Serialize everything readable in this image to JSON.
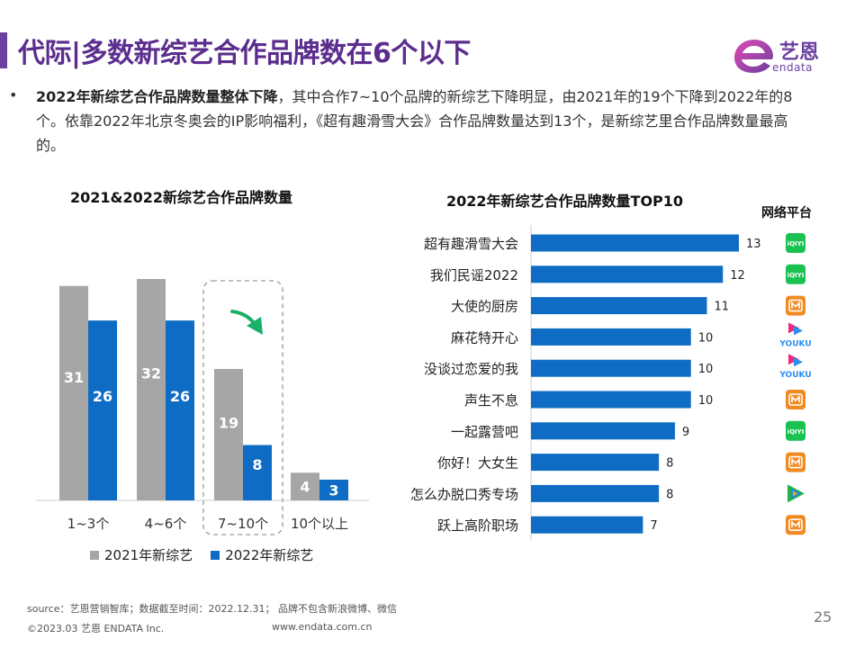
{
  "header": {
    "title": "代际|多数新综艺合作品牌数在6个以下",
    "logo_cn": "艺恩",
    "logo_en": "endata"
  },
  "summary": {
    "bullet": "•",
    "bold": "2022年新综艺合作品牌数量整体下降",
    "rest": "，其中合作7~10个品牌的新综艺下降明显，由2021年的19个下降到2022年的8个。依靠2022年北京冬奥会的IP影响福利，《超有趣滑雪大会》合作品牌数量达到13个，是新综艺里合作品牌数量最高的。"
  },
  "chart_data": [
    {
      "type": "bar",
      "title": "2021&2022新综艺合作品牌数量",
      "categories": [
        "1~3个",
        "4~6个",
        "7~10个",
        "10个以上"
      ],
      "series": [
        {
          "name": "2021年新综艺",
          "values": [
            31,
            32,
            19,
            4
          ],
          "color": "#a6a6a6"
        },
        {
          "name": "2022年新综艺",
          "values": [
            26,
            26,
            8,
            3
          ],
          "color": "#0e6cc4"
        }
      ],
      "ylim": [
        0,
        35
      ],
      "highlight_category": "7~10个",
      "annotation": "down-arrow"
    },
    {
      "type": "bar",
      "orientation": "horizontal",
      "title": "2022年新综艺合作品牌数量TOP10",
      "categories": [
        "超有趣滑雪大会",
        "我们民谣2022",
        "大使的厨房",
        "麻花特开心",
        "没谈过恋爱的我",
        "声生不息",
        "一起露营吧",
        "你好！大女生",
        "怎么办脱口秀专场",
        "跃上高阶职场"
      ],
      "values": [
        13,
        12,
        11,
        10,
        10,
        10,
        9,
        8,
        8,
        7
      ],
      "platforms": [
        "iqiyi",
        "iqiyi",
        "mgtv",
        "youku",
        "youku",
        "mgtv",
        "iqiyi",
        "mgtv",
        "tencent",
        "mgtv"
      ],
      "platform_header": "网络平台",
      "color": "#0e6cc4",
      "xlim": [
        0,
        15
      ]
    }
  ],
  "platform_labels": {
    "iqiyi": "iQIYI",
    "youku": "YOUKU"
  },
  "colors": {
    "iqiyi": "#19c251",
    "mgtv": "#f28a22",
    "youku_pink": "#ee2a7b",
    "youku_blue": "#2a8ef0",
    "tencent_green": "#20b34a",
    "tencent_blue": "#1e88e5",
    "tencent_orange": "#f7a81b"
  },
  "footer": {
    "source": "source：艺恩营销智库；数据截至时间：2022.12.31； 品牌不包含新浪微博、微信",
    "copyright": "©2023.03 艺恩 ENDATA Inc.",
    "url": "www.endata.com.cn",
    "page": "25"
  }
}
